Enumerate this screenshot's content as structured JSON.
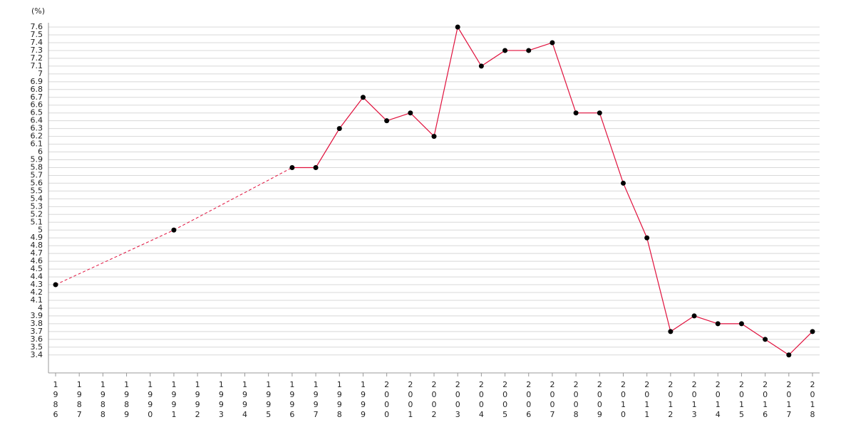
{
  "chart_data": {
    "type": "line",
    "unit_label": "(%)",
    "categories": [
      "1986",
      "1987",
      "1988",
      "1989",
      "1990",
      "1991",
      "1992",
      "1993",
      "1994",
      "1995",
      "1996",
      "1997",
      "1998",
      "1999",
      "2000",
      "2001",
      "2002",
      "2003",
      "2004",
      "2005",
      "2006",
      "2007",
      "2008",
      "2009",
      "2010",
      "2011",
      "2012",
      "2013",
      "2014",
      "2015",
      "2016",
      "2017",
      "2018"
    ],
    "series": [
      {
        "color": "#e0103c",
        "values": [
          4.3,
          null,
          null,
          null,
          null,
          5.0,
          null,
          null,
          null,
          null,
          5.8,
          5.8,
          6.3,
          6.7,
          6.4,
          6.5,
          6.2,
          7.6,
          7.1,
          7.3,
          7.3,
          7.4,
          6.5,
          6.5,
          5.6,
          4.9,
          3.7,
          3.9,
          3.8,
          3.8,
          3.6,
          3.4,
          3.7
        ]
      }
    ],
    "ylim": [
      3.17,
      7.655
    ],
    "yticks": [
      3.4,
      3.5,
      3.6,
      3.7,
      3.8,
      3.9,
      4,
      4.1,
      4.2,
      4.3,
      4.4,
      4.5,
      4.6,
      4.7,
      4.8,
      4.9,
      5,
      5.1,
      5.2,
      5.3,
      5.4,
      5.5,
      5.6,
      5.7,
      5.8,
      5.9,
      6,
      6.1,
      6.2,
      6.3,
      6.4,
      6.5,
      6.6,
      6.7,
      6.8,
      6.9,
      7,
      7.1,
      7.2,
      7.3,
      7.4,
      7.5,
      7.6
    ],
    "grid": true,
    "gap_style": "dashed"
  }
}
